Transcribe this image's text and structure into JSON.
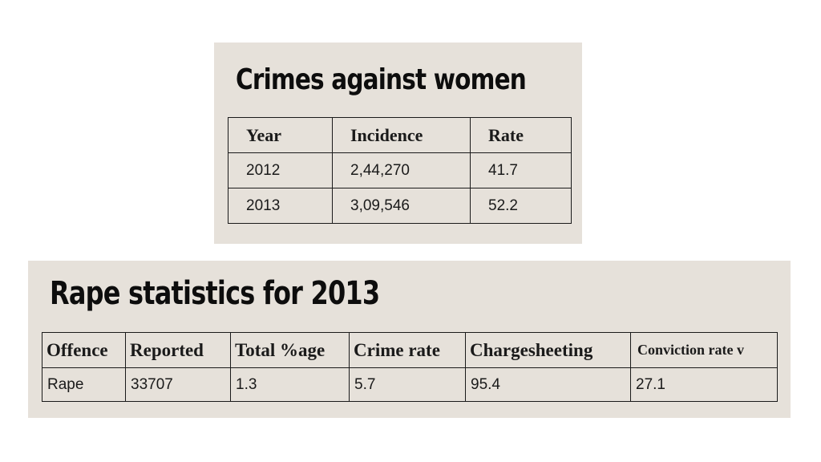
{
  "chart_data": [
    {
      "type": "table",
      "title": "Crimes against women",
      "columns": [
        "Year",
        "Incidence",
        "Rate"
      ],
      "rows": [
        [
          "2012",
          "2,44,270",
          "41.7"
        ],
        [
          "2013",
          "3,09,546",
          "52.2"
        ]
      ]
    },
    {
      "type": "table",
      "title": "Rape statistics for 2013",
      "columns": [
        "Offence",
        "Reported",
        "Total %age",
        "Crime rate",
        "Chargesheeting",
        "Conviction rate v"
      ],
      "rows": [
        [
          "Rape",
          "33707",
          "1.3",
          "5.7",
          "95.4",
          "27.1"
        ]
      ]
    }
  ]
}
